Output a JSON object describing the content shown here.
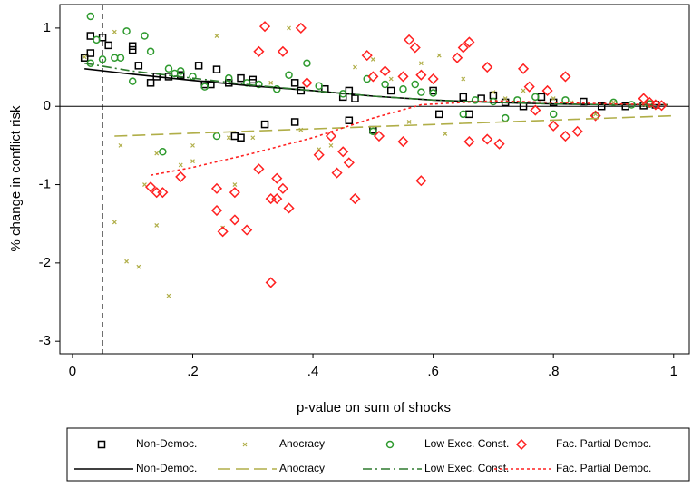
{
  "chart_data": {
    "type": "scatter",
    "x_label": "p-value on sum of shocks",
    "y_label": "% change in conflict risk",
    "xlim": [
      -0.021,
      1.026
    ],
    "ylim": [
      -3.16,
      1.3
    ],
    "xticks": [
      0,
      {
        "value": 0.2,
        "label": ".2"
      },
      {
        "value": 0.4,
        "label": ".4"
      },
      {
        "value": 0.6,
        "label": ".6"
      },
      {
        "value": 0.8,
        "label": ".8"
      },
      1
    ],
    "yticks": [
      -3,
      -2,
      -1,
      0,
      1
    ],
    "reference_line_x": 0.05,
    "reference_line_y": 0,
    "grid": false,
    "legend": "bottom",
    "series": [
      {
        "name": "Non-Democ.",
        "color": "#000000",
        "marker": "square",
        "x": [
          0.02,
          0.03,
          0.03,
          0.05,
          0.06,
          0.1,
          0.1,
          0.11,
          0.13,
          0.14,
          0.16,
          0.18,
          0.21,
          0.22,
          0.23,
          0.24,
          0.26,
          0.28,
          0.3,
          0.3,
          0.32,
          0.28,
          0.27,
          0.37,
          0.37,
          0.38,
          0.42,
          0.45,
          0.46,
          0.47,
          0.46,
          0.5,
          0.53,
          0.6,
          0.61,
          0.65,
          0.66,
          0.68,
          0.7,
          0.72,
          0.75,
          0.78,
          0.8,
          0.85,
          0.88,
          0.92,
          0.95,
          0.97
        ],
        "values": [
          0.62,
          0.68,
          0.9,
          0.88,
          0.78,
          0.77,
          0.72,
          0.52,
          0.3,
          0.38,
          0.38,
          0.4,
          0.52,
          0.28,
          0.28,
          0.47,
          0.3,
          0.36,
          0.34,
          0.3,
          -0.23,
          -0.4,
          -0.38,
          -0.2,
          0.3,
          0.2,
          0.22,
          0.12,
          0.2,
          0.1,
          -0.18,
          -0.3,
          0.2,
          0.2,
          -0.1,
          0.12,
          -0.1,
          0.1,
          0.14,
          0.05,
          0.0,
          0.12,
          0.05,
          0.06,
          0.0,
          0.0,
          0.01,
          0.02
        ]
      },
      {
        "name": "Anocracy",
        "color": "#b0ae48",
        "marker": "x",
        "x": [
          0.02,
          0.07,
          0.07,
          0.08,
          0.09,
          0.11,
          0.12,
          0.14,
          0.14,
          0.16,
          0.18,
          0.2,
          0.2,
          0.24,
          0.25,
          0.26,
          0.27,
          0.3,
          0.33,
          0.36,
          0.38,
          0.41,
          0.43,
          0.47,
          0.5,
          0.53,
          0.56,
          0.58,
          0.61,
          0.62,
          0.65,
          0.7,
          0.72,
          0.75,
          0.8,
          0.83,
          0.87,
          0.9,
          0.95
        ],
        "values": [
          0.63,
          0.95,
          -1.48,
          -0.5,
          -1.98,
          -2.05,
          -1.0,
          -0.6,
          -1.52,
          -2.42,
          -0.75,
          -0.7,
          -0.5,
          0.9,
          -1.55,
          -0.4,
          -1.0,
          -0.4,
          0.3,
          1.0,
          -0.3,
          -0.55,
          -0.5,
          0.5,
          0.6,
          0.35,
          -0.2,
          0.55,
          0.65,
          -0.35,
          0.35,
          0.18,
          0.1,
          0.2,
          0.1,
          0.05,
          -0.1,
          0.05,
          0.02
        ]
      },
      {
        "name": "Low Exec. Const.",
        "color": "#2e9a2e",
        "marker": "circle",
        "x": [
          0.03,
          0.03,
          0.04,
          0.05,
          0.07,
          0.08,
          0.09,
          0.1,
          0.12,
          0.13,
          0.15,
          0.16,
          0.17,
          0.18,
          0.2,
          0.22,
          0.24,
          0.26,
          0.29,
          0.31,
          0.34,
          0.36,
          0.39,
          0.41,
          0.45,
          0.49,
          0.5,
          0.52,
          0.55,
          0.57,
          0.58,
          0.6,
          0.65,
          0.67,
          0.7,
          0.72,
          0.74,
          0.77,
          0.8,
          0.82,
          0.87,
          0.9,
          0.93,
          0.96
        ],
        "values": [
          0.55,
          1.15,
          0.85,
          0.6,
          0.62,
          0.62,
          0.96,
          0.32,
          0.9,
          0.7,
          -0.58,
          0.48,
          0.42,
          0.45,
          0.38,
          0.25,
          -0.38,
          0.36,
          0.3,
          0.28,
          0.22,
          0.4,
          0.55,
          0.26,
          0.16,
          0.35,
          -0.32,
          0.28,
          0.22,
          0.28,
          0.18,
          0.17,
          -0.1,
          0.08,
          0.06,
          -0.15,
          0.08,
          0.12,
          -0.1,
          0.08,
          -0.12,
          0.05,
          0.02,
          0.03
        ]
      },
      {
        "name": "Fac. Partial Democ.",
        "color": "#ff2020",
        "marker": "diamond",
        "x": [
          0.13,
          0.14,
          0.15,
          0.18,
          0.24,
          0.24,
          0.25,
          0.27,
          0.27,
          0.29,
          0.31,
          0.31,
          0.32,
          0.33,
          0.33,
          0.34,
          0.34,
          0.35,
          0.35,
          0.36,
          0.38,
          0.39,
          0.41,
          0.43,
          0.44,
          0.45,
          0.46,
          0.47,
          0.49,
          0.5,
          0.51,
          0.52,
          0.55,
          0.55,
          0.56,
          0.57,
          0.58,
          0.58,
          0.6,
          0.64,
          0.65,
          0.66,
          0.66,
          0.69,
          0.69,
          0.71,
          0.75,
          0.76,
          0.77,
          0.79,
          0.8,
          0.82,
          0.82,
          0.84,
          0.87,
          0.95,
          0.96,
          0.97,
          0.98
        ],
        "values": [
          -1.03,
          -1.1,
          -1.1,
          -0.9,
          -1.33,
          -1.05,
          -1.6,
          -1.45,
          -1.1,
          -1.58,
          0.7,
          -0.8,
          1.02,
          -1.18,
          -2.25,
          -0.92,
          -1.18,
          0.7,
          -1.05,
          -1.3,
          1.0,
          0.3,
          -0.62,
          -0.38,
          -0.85,
          -0.58,
          -0.72,
          -1.18,
          0.65,
          0.38,
          -0.38,
          0.45,
          0.38,
          -0.45,
          0.85,
          0.75,
          -0.95,
          0.4,
          0.35,
          0.62,
          0.75,
          0.82,
          -0.45,
          -0.42,
          0.5,
          -0.48,
          0.48,
          0.25,
          -0.05,
          0.2,
          -0.25,
          -0.38,
          0.38,
          -0.32,
          -0.12,
          0.1,
          0.05,
          0.02,
          0.01
        ]
      },
      {
        "name": "Non-Democ.",
        "color": "#000000",
        "style": "solid",
        "x": [
          0.02,
          0.1,
          0.2,
          0.3,
          0.4,
          0.5,
          0.6,
          0.7,
          0.8,
          0.9,
          0.99
        ],
        "values": [
          0.48,
          0.41,
          0.33,
          0.26,
          0.2,
          0.13,
          0.08,
          0.05,
          0.03,
          0.02,
          0.02
        ]
      },
      {
        "name": "Anocracy",
        "color": "#b0ae48",
        "style": "dash",
        "x": [
          0.07,
          1.0
        ],
        "values": [
          -0.38,
          -0.12
        ]
      },
      {
        "name": "Low Exec. Const.",
        "color": "#2e7a2e",
        "style": "dashdot",
        "x": [
          0.02,
          0.1,
          0.2,
          0.3,
          0.4,
          0.5,
          0.6,
          0.7,
          0.8,
          0.9,
          0.99
        ],
        "values": [
          0.55,
          0.45,
          0.36,
          0.27,
          0.2,
          0.13,
          0.08,
          0.05,
          0.03,
          0.02,
          0.02
        ]
      },
      {
        "name": "Fac. Partial Democ.",
        "color": "#ff2020",
        "style": "dot",
        "x": [
          0.13,
          0.2,
          0.3,
          0.4,
          0.5,
          0.58,
          0.7,
          0.8,
          0.9,
          0.99
        ],
        "values": [
          -0.88,
          -0.78,
          -0.6,
          -0.4,
          -0.15,
          0.02,
          0.07,
          0.05,
          0.03,
          0.02
        ]
      }
    ]
  }
}
